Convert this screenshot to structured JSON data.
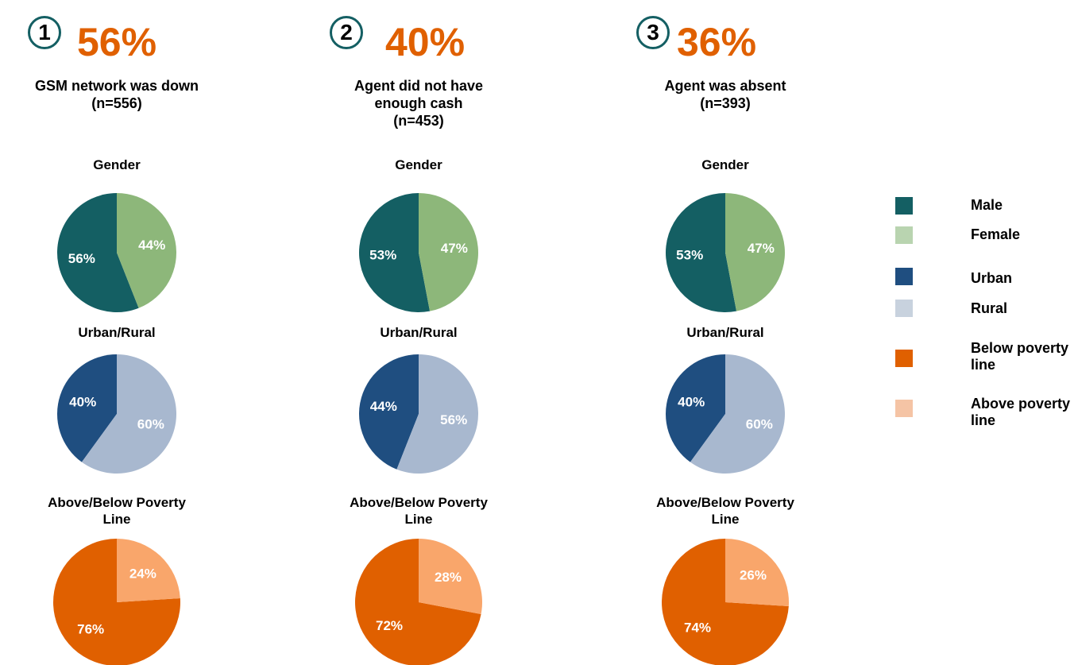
{
  "columns": [
    {
      "number": "1",
      "headline": "56%",
      "description": [
        "GSM network was down",
        "(n=556)"
      ]
    },
    {
      "number": "2",
      "headline": "40%",
      "description": [
        "Agent did not have",
        "enough cash",
        "(n=453)"
      ]
    },
    {
      "number": "3",
      "headline": "36%",
      "description": [
        "Agent was absent",
        "(n=393)"
      ]
    }
  ],
  "legend": [
    {
      "name": "Male",
      "color": "#145f63"
    },
    {
      "name": "Female",
      "color": "#b9d4b0"
    },
    {
      "name": "Urban",
      "color": "#1f4e80"
    },
    {
      "name": "Rural",
      "color": "#c8d2de"
    },
    {
      "name": "Below poverty line",
      "color": "#e06000"
    },
    {
      "name": "Above poverty line",
      "color": "#f5c4a5"
    }
  ],
  "chart_data": [
    {
      "type": "pie",
      "title": "Gender",
      "values": [
        56,
        44
      ],
      "value_labels": [
        "56%",
        "44%"
      ],
      "colors": [
        "#145f63",
        "#8db77a"
      ]
    },
    {
      "type": "pie",
      "title": "Urban/Rural",
      "values": [
        40,
        60
      ],
      "value_labels": [
        "40%",
        "60%"
      ],
      "colors": [
        "#1f4e80",
        "#a8b8cf"
      ]
    },
    {
      "type": "pie",
      "title": "Above/Below Poverty Line",
      "values": [
        76,
        24
      ],
      "value_labels": [
        "76%",
        "24%"
      ],
      "colors": [
        "#e06000",
        "#f9a66b"
      ]
    },
    {
      "type": "pie",
      "title": "Gender",
      "values": [
        53,
        47
      ],
      "value_labels": [
        "53%",
        "47%"
      ],
      "colors": [
        "#145f63",
        "#8db77a"
      ]
    },
    {
      "type": "pie",
      "title": "Urban/Rural",
      "values": [
        44,
        56
      ],
      "value_labels": [
        "44%",
        "56%"
      ],
      "colors": [
        "#1f4e80",
        "#a8b8cf"
      ]
    },
    {
      "type": "pie",
      "title": "Above/Below Poverty Line",
      "values": [
        72,
        28
      ],
      "value_labels": [
        "72%",
        "28%"
      ],
      "colors": [
        "#e06000",
        "#f9a66b"
      ]
    },
    {
      "type": "pie",
      "title": "Gender",
      "values": [
        53,
        47
      ],
      "value_labels": [
        "53%",
        "47%"
      ],
      "colors": [
        "#145f63",
        "#8db77a"
      ]
    },
    {
      "type": "pie",
      "title": "Urban/Rural",
      "values": [
        40,
        60
      ],
      "value_labels": [
        "40%",
        "60%"
      ],
      "colors": [
        "#1f4e80",
        "#a8b8cf"
      ]
    },
    {
      "type": "pie",
      "title": "Above/Below Poverty Line",
      "values": [
        74,
        26
      ],
      "value_labels": [
        "74%",
        "26%"
      ],
      "colors": [
        "#e06000",
        "#f9a66b"
      ]
    }
  ]
}
